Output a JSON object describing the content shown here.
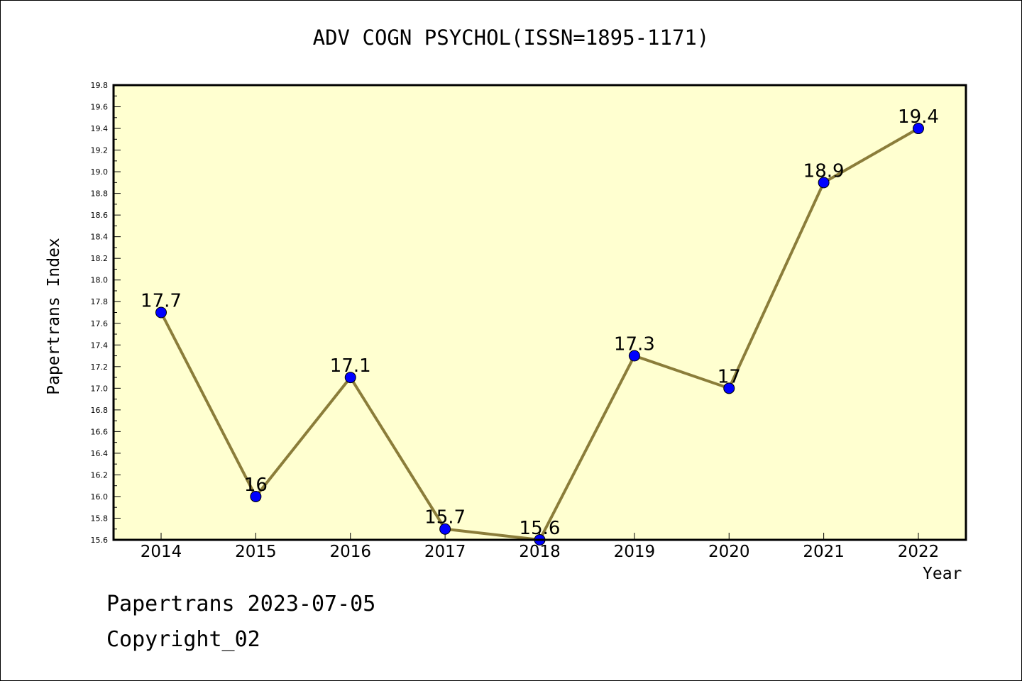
{
  "title": "ADV COGN PSYCHOL(ISSN=1895-1171)",
  "footer": {
    "date_line": "Papertrans 2023-07-05",
    "copyright": "Copyright_02"
  },
  "colors": {
    "plot_background": "#ffffd0",
    "line": "#8b7d3a",
    "marker": "#0000ff"
  },
  "chart_data": {
    "type": "line",
    "xlabel": "Year",
    "ylabel": "Papertrans Index",
    "categories": [
      "2014",
      "2015",
      "2016",
      "2017",
      "2018",
      "2019",
      "2020",
      "2021",
      "2022"
    ],
    "series": [
      {
        "values": [
          17.7,
          16.0,
          17.1,
          15.7,
          15.6,
          17.3,
          17.0,
          18.9,
          19.4
        ]
      }
    ],
    "data_labels": [
      "17.7",
      "16",
      "17.1",
      "15.7",
      "15.6",
      "17.3",
      "17",
      "18.9",
      "19.4"
    ],
    "ylim": [
      15.6,
      19.8
    ],
    "y_ticks": [
      "15.6",
      "15.8",
      "16.0",
      "16.2",
      "16.4",
      "16.6",
      "16.8",
      "17.0",
      "17.2",
      "17.4",
      "17.6",
      "17.8",
      "18.0",
      "18.2",
      "18.4",
      "18.6",
      "18.8",
      "19.0",
      "19.2",
      "19.4",
      "19.6",
      "19.8"
    ],
    "grid": false,
    "legend": "none"
  }
}
